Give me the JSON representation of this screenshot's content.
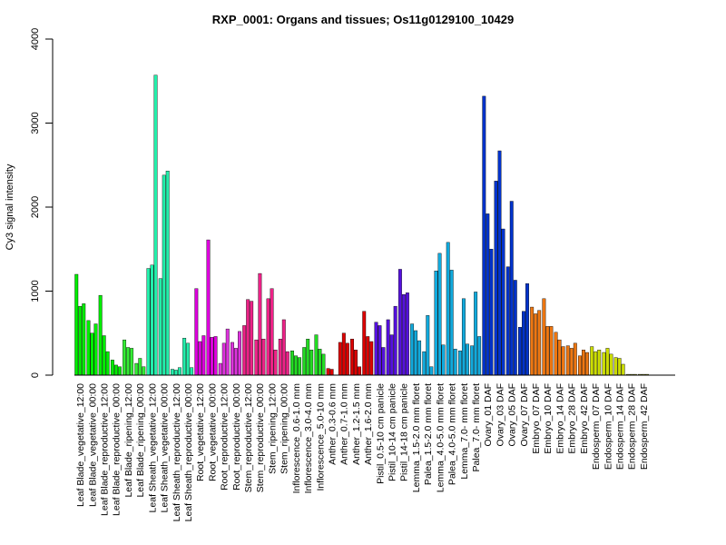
{
  "chart_data": {
    "type": "bar",
    "title": "RXP_0001: Organs and tissues; Os11g0129100_10429",
    "xlabel": "",
    "ylabel": "Cy3 signal intensity",
    "ylim": [
      0,
      4000
    ],
    "yticks": [
      0,
      1000,
      2000,
      3000,
      4000
    ],
    "grid": false,
    "legend": "none",
    "groups": [
      {
        "label": "Leaf Blade_vegetative_12:00",
        "color": "#00ee00",
        "values": [
          1200,
          820,
          850
        ]
      },
      {
        "label": "Leaf Blade_vegetative_00:00",
        "color": "#00ee00",
        "values": [
          650,
          500,
          610
        ]
      },
      {
        "label": "Leaf Blade_reproductive_12:00",
        "color": "#00ee00",
        "values": [
          950,
          470,
          280
        ]
      },
      {
        "label": "Leaf Blade_reproductive_00:00",
        "color": "#00ee00",
        "values": [
          180,
          120,
          100
        ]
      },
      {
        "label": "Leaf Blade_ripening_12:00",
        "color": "#33ee33",
        "values": [
          420,
          330,
          320
        ]
      },
      {
        "label": "Leaf Blade_ripening_00:00",
        "color": "#33ee33",
        "values": [
          140,
          200,
          100
        ]
      },
      {
        "label": "Leaf Sheath_vegetative_12:00",
        "color": "#22eeaa",
        "values": [
          1270,
          1310,
          3570
        ]
      },
      {
        "label": "Leaf Sheath_vegetative_00:00",
        "color": "#22eeaa",
        "values": [
          1150,
          2380,
          2430
        ]
      },
      {
        "label": "Leaf Sheath_reproductive_12:00",
        "color": "#22eeaa",
        "values": [
          70,
          60,
          90
        ]
      },
      {
        "label": "Leaf Sheath_reproductive_00:00",
        "color": "#22eeaa",
        "values": [
          440,
          380,
          90
        ]
      },
      {
        "label": "Root_vegetative_12:00",
        "color": "#dd00dd",
        "values": [
          1030,
          400,
          470
        ]
      },
      {
        "label": "Root_vegetative_00:00",
        "color": "#dd00dd",
        "values": [
          1610,
          450,
          460
        ]
      },
      {
        "label": "Root_reproductive_12:00",
        "color": "#dd33dd",
        "values": [
          140,
          380,
          550
        ]
      },
      {
        "label": "Root_reproductive_00:00",
        "color": "#dd33dd",
        "values": [
          390,
          320,
          520
        ]
      },
      {
        "label": "Stem_reproductive_12:00",
        "color": "#ee2288",
        "values": [
          590,
          900,
          880
        ]
      },
      {
        "label": "Stem_reproductive_00:00",
        "color": "#ee2288",
        "values": [
          420,
          1210,
          430
        ]
      },
      {
        "label": "Stem_ripening_12:00",
        "color": "#ee2288",
        "values": [
          910,
          1030,
          300
        ]
      },
      {
        "label": "Stem_ripening_00:00",
        "color": "#ee2288",
        "values": [
          430,
          660,
          280
        ]
      },
      {
        "label": "Inflorescence_0.6-1.0 mm",
        "color": "#22dd22",
        "values": [
          290,
          230,
          210
        ]
      },
      {
        "label": "Inflorescence_3.0-4.0 mm",
        "color": "#22dd22",
        "values": [
          330,
          430,
          300
        ]
      },
      {
        "label": "Inflorescence_5.0-10 mm",
        "color": "#22dd22",
        "values": [
          480,
          310,
          250
        ]
      },
      {
        "label": "Anther_0.3-0.6 mm",
        "color": "#dd0000",
        "values": [
          80,
          70
        ]
      },
      {
        "label": "Anther_0.7-1.0 mm",
        "color": "#dd0000",
        "values": [
          390,
          500,
          380
        ]
      },
      {
        "label": "Anther_1.2-1.5 mm",
        "color": "#dd0000",
        "values": [
          430,
          300,
          100
        ]
      },
      {
        "label": "Anther_1.6-2.0 mm",
        "color": "#dd0000",
        "values": [
          760,
          460,
          400
        ]
      },
      {
        "label": "Pistil_0.5-10 cm panicle",
        "color": "#5511dd",
        "values": [
          630,
          590,
          330
        ]
      },
      {
        "label": "Pistil_10-14 cm panicle",
        "color": "#5511dd",
        "values": [
          660,
          480,
          820
        ]
      },
      {
        "label": "Pistil_14-18 cm panicle",
        "color": "#5511dd",
        "values": [
          1260,
          960,
          980
        ]
      },
      {
        "label": "Lemma_1.5-2.0 mm floret",
        "color": "#11aadd",
        "values": [
          610,
          530,
          410
        ]
      },
      {
        "label": "Palea_1.5-2.0 mm floret",
        "color": "#11aadd",
        "values": [
          280,
          710,
          100
        ]
      },
      {
        "label": "Lemma_4.0-5.0 mm floret",
        "color": "#11aadd",
        "values": [
          1240,
          1450,
          360
        ]
      },
      {
        "label": "Palea_4.0-5.0 mm floret",
        "color": "#11aadd",
        "values": [
          1580,
          1250,
          310
        ]
      },
      {
        "label": "Lemma_7.0- mm floret",
        "color": "#11aadd",
        "values": [
          290,
          910,
          370
        ]
      },
      {
        "label": "Palea_7.0- mm floret",
        "color": "#11aadd",
        "values": [
          350,
          990,
          460
        ]
      },
      {
        "label": "Ovary_01 DAF",
        "color": "#0033cc",
        "values": [
          3320,
          1920,
          1500
        ]
      },
      {
        "label": "Ovary_03 DAF",
        "color": "#0033cc",
        "values": [
          2310,
          2670,
          1740
        ]
      },
      {
        "label": "Ovary_05 DAF",
        "color": "#0033cc",
        "values": [
          1290,
          2070,
          1130
        ]
      },
      {
        "label": "Ovary_07 DAF",
        "color": "#0033cc",
        "values": [
          570,
          760,
          1090
        ]
      },
      {
        "label": "Embryo_07 DAF",
        "color": "#ee7711",
        "values": [
          810,
          730,
          770
        ]
      },
      {
        "label": "Embryo_10 DAF",
        "color": "#ee7711",
        "values": [
          910,
          580,
          580
        ]
      },
      {
        "label": "Embryo_14 DAF",
        "color": "#ee7711",
        "values": [
          510,
          420,
          340
        ]
      },
      {
        "label": "Embryo_28 DAF",
        "color": "#ee7711",
        "values": [
          350,
          320,
          380
        ]
      },
      {
        "label": "Embryo_42 DAF",
        "color": "#ee7711",
        "values": [
          230,
          300,
          270
        ]
      },
      {
        "label": "Endosperm_07 DAF",
        "color": "#ccdd00",
        "values": [
          340,
          280,
          300
        ]
      },
      {
        "label": "Endosperm_10 DAF",
        "color": "#ccdd00",
        "values": [
          270,
          320,
          250
        ]
      },
      {
        "label": "Endosperm_14 DAF",
        "color": "#ccdd00",
        "values": [
          210,
          200,
          130
        ]
      },
      {
        "label": "Endosperm_28 DAF",
        "color": "#ccdd00",
        "values": [
          10,
          10,
          10
        ]
      },
      {
        "label": "Endosperm_42 DAF",
        "color": "#ccdd00",
        "values": [
          10,
          10,
          10
        ]
      }
    ]
  }
}
